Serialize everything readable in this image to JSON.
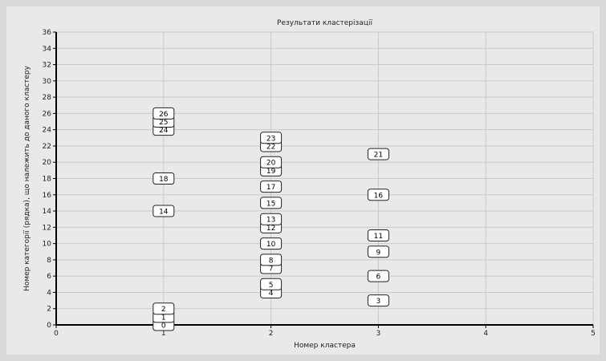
{
  "chart_data": {
    "type": "scatter",
    "title": "Результати кластерізації",
    "xlabel": "Номер кластера",
    "ylabel": "Номер категорії (рядка), що належить до даного кластеру",
    "xlim": [
      0,
      5
    ],
    "ylim": [
      0,
      36
    ],
    "x_ticks": [
      0,
      1,
      2,
      3,
      4,
      5
    ],
    "y_ticks": [
      0,
      2,
      4,
      6,
      8,
      10,
      12,
      14,
      16,
      18,
      20,
      22,
      24,
      26,
      28,
      30,
      32,
      34,
      36
    ],
    "grid": true,
    "points": [
      {
        "x": 1,
        "y": 0,
        "label": "0"
      },
      {
        "x": 1,
        "y": 1,
        "label": "1"
      },
      {
        "x": 1,
        "y": 2,
        "label": "2"
      },
      {
        "x": 1,
        "y": 14,
        "label": "14"
      },
      {
        "x": 1,
        "y": 18,
        "label": "18"
      },
      {
        "x": 1,
        "y": 24,
        "label": "24"
      },
      {
        "x": 1,
        "y": 25,
        "label": "25"
      },
      {
        "x": 1,
        "y": 26,
        "label": "26"
      },
      {
        "x": 2,
        "y": 4,
        "label": "4"
      },
      {
        "x": 2,
        "y": 5,
        "label": "5"
      },
      {
        "x": 2,
        "y": 7,
        "label": "7"
      },
      {
        "x": 2,
        "y": 8,
        "label": "8"
      },
      {
        "x": 2,
        "y": 10,
        "label": "10"
      },
      {
        "x": 2,
        "y": 12,
        "label": "12"
      },
      {
        "x": 2,
        "y": 13,
        "label": "13"
      },
      {
        "x": 2,
        "y": 15,
        "label": "15"
      },
      {
        "x": 2,
        "y": 17,
        "label": "17"
      },
      {
        "x": 2,
        "y": 19,
        "label": "19"
      },
      {
        "x": 2,
        "y": 20,
        "label": "20"
      },
      {
        "x": 2,
        "y": 22,
        "label": "22"
      },
      {
        "x": 2,
        "y": 23,
        "label": "23"
      },
      {
        "x": 3,
        "y": 3,
        "label": "3"
      },
      {
        "x": 3,
        "y": 6,
        "label": "6"
      },
      {
        "x": 3,
        "y": 9,
        "label": "9"
      },
      {
        "x": 3,
        "y": 11,
        "label": "11"
      },
      {
        "x": 3,
        "y": 16,
        "label": "16"
      },
      {
        "x": 3,
        "y": 21,
        "label": "21"
      }
    ]
  }
}
